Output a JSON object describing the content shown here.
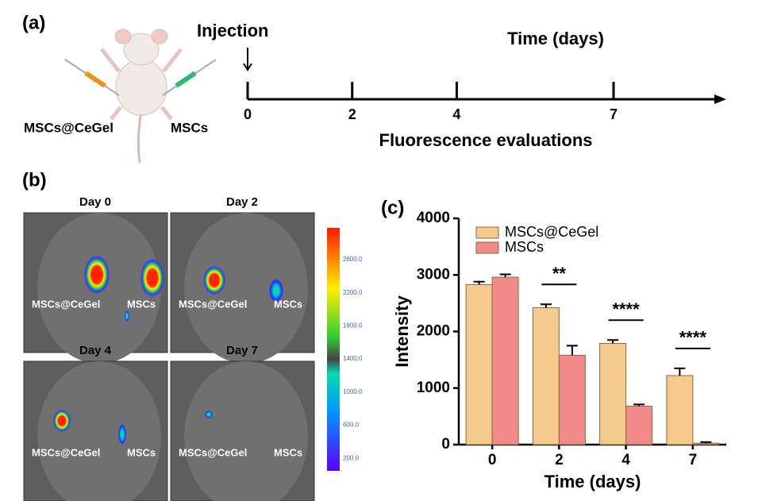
{
  "panel_a": {
    "label": "(a)",
    "left_label": "MSCs@CeGel",
    "right_label": "MSCs",
    "injection": "Injection",
    "timeline_title": "Time (days)",
    "timepoints": [
      0,
      2,
      4,
      7
    ],
    "caption": "Fluorescence evaluations"
  },
  "panel_b": {
    "label": "(b)",
    "images": [
      {
        "title": "Day 0",
        "left_label": "MSCs@CeGel",
        "right_label": "MSCs"
      },
      {
        "title": "Day 2",
        "left_label": "MSCs@CeGel",
        "right_label": "MSCs"
      },
      {
        "title": "Day 4",
        "left_label": "MSCs@CeGel",
        "right_label": "MSCs"
      },
      {
        "title": "Day 7",
        "left_label": "MSCs@CeGel",
        "right_label": "MSCs"
      }
    ],
    "colorbar_ticks": [
      "2600.0",
      "2200.0",
      "1800.0",
      "1400.0",
      "1000.0",
      "600.0",
      "200.0"
    ]
  },
  "chart_data": {
    "type": "bar",
    "label": "(c)",
    "xlabel": "Time (days)",
    "ylabel": "Intensity",
    "categories": [
      "0",
      "2",
      "4",
      "7"
    ],
    "ylim": [
      0,
      4000
    ],
    "yticks": [
      0,
      1000,
      2000,
      3000,
      4000
    ],
    "legend": "upper left",
    "series": [
      {
        "name": "MSCs@CeGel",
        "color": "#f6c98c",
        "values": [
          2830,
          2420,
          1790,
          1220
        ],
        "errors": [
          50,
          60,
          60,
          130
        ]
      },
      {
        "name": "MSCs",
        "color": "#f28a8a",
        "values": [
          2960,
          1580,
          680,
          25
        ],
        "errors": [
          50,
          170,
          30,
          20
        ]
      }
    ],
    "annotations": [
      {
        "text": "**",
        "category": "2"
      },
      {
        "text": "****",
        "category": "4"
      },
      {
        "text": "****",
        "category": "7"
      }
    ]
  }
}
